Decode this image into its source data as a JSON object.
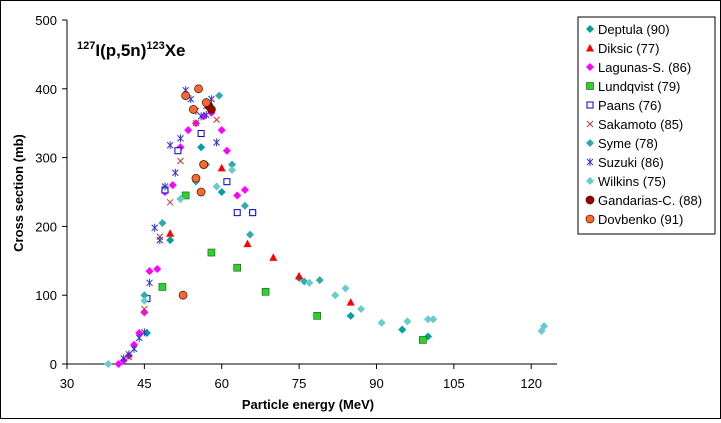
{
  "chart_data": {
    "type": "scatter",
    "annotation": {
      "mass": "127",
      "element": "I(p,5n)",
      "product_mass": "123",
      "product": "Xe"
    },
    "xlabel": "Particle energy (MeV)",
    "ylabel": "Cross section (mb)",
    "xlim": [
      30,
      125
    ],
    "ylim": [
      0,
      500
    ],
    "x_ticks": [
      30,
      45,
      60,
      75,
      90,
      105,
      120
    ],
    "y_ticks": [
      0,
      100,
      200,
      300,
      400,
      500
    ],
    "grid": false,
    "legend_position": "right",
    "series": [
      {
        "name": "Deptula (90)",
        "marker": "diamond",
        "color": "#00A0A0",
        "x": [
          45.5,
          50,
          56,
          60,
          75,
          85,
          95,
          100
        ],
        "y": [
          45,
          180,
          315,
          250,
          125,
          70,
          50,
          40
        ]
      },
      {
        "name": "Diksic (77)",
        "marker": "triangle",
        "color": "#FF0000",
        "x": [
          50,
          60,
          65,
          70,
          75,
          85
        ],
        "y": [
          190,
          285,
          175,
          155,
          128,
          90
        ]
      },
      {
        "name": "Lagunas-S. (86)",
        "marker": "diamond",
        "color": "#FF00FF",
        "x": [
          40,
          41,
          42,
          43,
          44,
          45,
          46,
          47.5,
          49,
          50.5,
          52,
          53.5,
          55,
          56.5,
          58,
          60,
          61,
          63,
          64.5,
          66
        ],
        "y": [
          0,
          5,
          12,
          28,
          45,
          75,
          135,
          138,
          250,
          260,
          315,
          340,
          350,
          360,
          365,
          340,
          310,
          245,
          253,
          220
        ]
      },
      {
        "name": "Lundqvist (79)",
        "marker": "square",
        "color": "#33CC33",
        "x": [
          48.5,
          53,
          58,
          63,
          68.5,
          78.5,
          99
        ],
        "y": [
          112,
          245,
          162,
          140,
          105,
          70,
          35
        ]
      },
      {
        "name": "Paans (76)",
        "marker": "square-open",
        "color": "#0000CC",
        "x": [
          45.5,
          49,
          51.5,
          56,
          61,
          63,
          66
        ],
        "y": [
          95,
          253,
          310,
          335,
          265,
          220,
          220
        ]
      },
      {
        "name": "Sakamoto (85)",
        "marker": "x",
        "color": "#CC3333",
        "x": [
          42,
          45,
          48,
          50,
          52,
          55,
          57,
          59
        ],
        "y": [
          10,
          80,
          185,
          235,
          295,
          350,
          375,
          355
        ]
      },
      {
        "name": "Syme (78)",
        "marker": "diamond",
        "color": "#33AAAA",
        "x": [
          45,
          48.5,
          52,
          55,
          57,
          59.5,
          62,
          64.5,
          65.5,
          76,
          79
        ],
        "y": [
          100,
          205,
          240,
          265,
          290,
          390,
          290,
          230,
          188,
          120,
          122
        ]
      },
      {
        "name": "Suzuki (86)",
        "marker": "asterisk",
        "color": "#3333CC",
        "x": [
          41,
          42,
          43,
          44,
          45,
          46,
          47,
          48,
          49,
          50,
          51,
          52,
          53,
          54,
          55,
          56,
          57,
          58,
          59
        ],
        "y": [
          8,
          14,
          22,
          38,
          46,
          118,
          198,
          180,
          258,
          318,
          278,
          328,
          398,
          385,
          368,
          360,
          362,
          385,
          322
        ]
      },
      {
        "name": "Wilkins (75)",
        "marker": "diamond",
        "color": "#66CCCC",
        "x": [
          38,
          45,
          52,
          59,
          62,
          77,
          82,
          84,
          87,
          91,
          96,
          100,
          101,
          122,
          122.5
        ],
        "y": [
          0,
          92,
          240,
          258,
          282,
          118,
          100,
          110,
          80,
          60,
          62,
          65,
          65,
          48,
          55
        ]
      },
      {
        "name": "Gandarias-C. (88)",
        "marker": "circle",
        "color": "#990000",
        "x": [
          56.5,
          57.5,
          58
        ],
        "y": [
          290,
          375,
          370
        ]
      },
      {
        "name": "Dovbenko (91)",
        "marker": "circle",
        "color": "#FF6633",
        "x": [
          52.5,
          53,
          54.5,
          55.5,
          56,
          56.5,
          57,
          55
        ],
        "y": [
          100,
          390,
          370,
          400,
          250,
          290,
          380,
          270
        ]
      }
    ]
  }
}
